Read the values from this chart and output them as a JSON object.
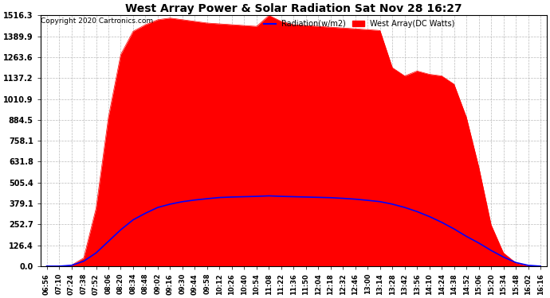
{
  "title": "West Array Power & Solar Radiation Sat Nov 28 16:27",
  "copyright": "Copyright 2020 Cartronics.com",
  "legend_radiation": "Radiation(w/m2)",
  "legend_west": "West Array(DC Watts)",
  "radiation_color": "blue",
  "west_color": "red",
  "background_color": "#ffffff",
  "ymin": 0.0,
  "ymax": 1516.3,
  "yticks": [
    0.0,
    126.4,
    252.7,
    379.1,
    505.4,
    631.8,
    758.1,
    884.5,
    1010.9,
    1137.2,
    1263.6,
    1389.9,
    1516.3
  ],
  "ytick_labels": [
    "0.0",
    "126.4",
    "252.7",
    "379.1",
    "505.4",
    "631.8",
    "758.1",
    "884.5",
    "1010.9",
    "1137.2",
    "1263.6",
    "1389.9",
    "1516.3"
  ],
  "xtick_labels": [
    "06:56",
    "07:10",
    "07:24",
    "07:38",
    "07:52",
    "08:06",
    "08:20",
    "08:34",
    "08:48",
    "09:02",
    "09:16",
    "09:30",
    "09:44",
    "09:58",
    "10:12",
    "10:26",
    "10:40",
    "10:54",
    "11:08",
    "11:22",
    "11:36",
    "11:50",
    "12:04",
    "12:18",
    "12:32",
    "12:46",
    "13:00",
    "13:14",
    "13:28",
    "13:42",
    "13:56",
    "14:10",
    "14:24",
    "14:38",
    "14:52",
    "15:06",
    "15:20",
    "15:34",
    "15:48",
    "16:02",
    "16:16"
  ],
  "n_points": 41,
  "west_array": [
    0,
    0,
    5,
    50,
    350,
    900,
    1280,
    1420,
    1460,
    1490,
    1500,
    1490,
    1480,
    1470,
    1465,
    1460,
    1455,
    1450,
    1516,
    1480,
    1460,
    1455,
    1450,
    1445,
    1440,
    1435,
    1430,
    1425,
    1200,
    1150,
    1180,
    1160,
    1150,
    1100,
    900,
    600,
    250,
    80,
    20,
    3,
    0
  ],
  "radiation": [
    0,
    0,
    5,
    30,
    80,
    150,
    220,
    280,
    320,
    355,
    375,
    390,
    400,
    408,
    415,
    418,
    420,
    422,
    425,
    422,
    420,
    418,
    416,
    414,
    410,
    405,
    398,
    390,
    375,
    355,
    330,
    300,
    265,
    225,
    180,
    140,
    95,
    55,
    22,
    5,
    0
  ]
}
